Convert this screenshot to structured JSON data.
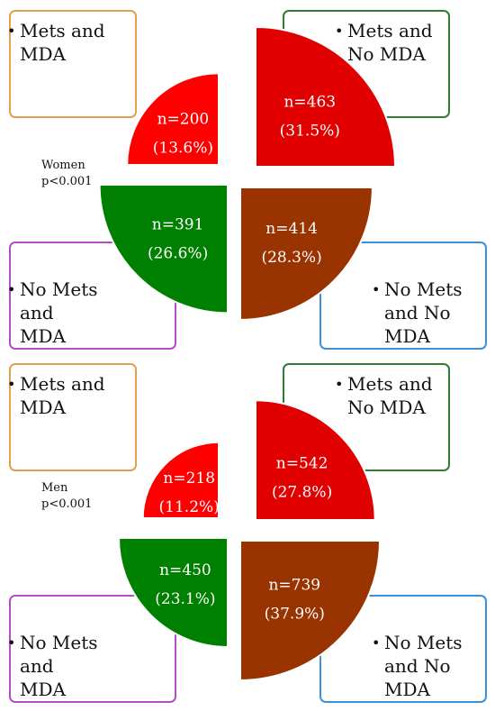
{
  "chart_data": [
    {
      "type": "pie",
      "note_lines": [
        "Women",
        "p<0.001"
      ],
      "categories": [
        "Mets and MDA",
        "Mets and No MDA",
        "No Mets and MDA",
        "No Mets and No MDA"
      ],
      "slices": [
        {
          "key": "mets_mda",
          "n_label": "n=200",
          "pct_label": "(13.6%)",
          "n": 200,
          "pct": 13.6,
          "color": "#ff0000"
        },
        {
          "key": "mets_nomda",
          "n_label": "n=463",
          "pct_label": "(31.5%)",
          "n": 463,
          "pct": 31.5,
          "color": "#e00000"
        },
        {
          "key": "nomets_mda",
          "n_label": "n=391",
          "pct_label": "(26.6%)",
          "n": 391,
          "pct": 26.6,
          "color": "#008000"
        },
        {
          "key": "nomets_nomda",
          "n_label": "n=414",
          "pct_label": "(28.3%)",
          "n": 414,
          "pct": 28.3,
          "color": "#993300"
        }
      ],
      "legend_boxes": [
        {
          "key": "mets_mda",
          "lines": [
            "Mets and",
            "MDA"
          ],
          "border": "#e0a050"
        },
        {
          "key": "mets_nomda",
          "lines": [
            "Mets and",
            "No MDA"
          ],
          "border": "#2e7d32"
        },
        {
          "key": "nomets_mda",
          "lines": [
            "No Mets",
            "and",
            "MDA"
          ],
          "border": "#b04fc0"
        },
        {
          "key": "nomets_nomda",
          "lines": [
            "No Mets",
            "and No",
            "MDA"
          ],
          "border": "#3d8fdc"
        }
      ]
    },
    {
      "type": "pie",
      "note_lines": [
        "Men",
        "p<0.001"
      ],
      "categories": [
        "Mets and MDA",
        "Mets and No MDA",
        "No Mets and MDA",
        "No Mets and No MDA"
      ],
      "slices": [
        {
          "key": "mets_mda",
          "n_label": "n=218",
          "pct_label": "(11.2%)",
          "n": 218,
          "pct": 11.2,
          "color": "#ff0000"
        },
        {
          "key": "mets_nomda",
          "n_label": "n=542",
          "pct_label": "(27.8%)",
          "n": 542,
          "pct": 27.8,
          "color": "#e00000"
        },
        {
          "key": "nomets_mda",
          "n_label": "n=450",
          "pct_label": "(23.1%)",
          "n": 450,
          "pct": 23.1,
          "color": "#008000"
        },
        {
          "key": "nomets_nomda",
          "n_label": "n=739",
          "pct_label": "(37.9%)",
          "n": 739,
          "pct": 37.9,
          "color": "#993300"
        }
      ],
      "legend_boxes": [
        {
          "key": "mets_mda",
          "lines": [
            "Mets and",
            "MDA"
          ],
          "border": "#e0a050"
        },
        {
          "key": "mets_nomda",
          "lines": [
            "Mets and",
            "No MDA"
          ],
          "border": "#2e7d32"
        },
        {
          "key": "nomets_mda",
          "lines": [
            "No Mets",
            "and",
            "MDA"
          ],
          "border": "#b04fc0"
        },
        {
          "key": "nomets_nomda",
          "lines": [
            "No Mets",
            "and No",
            "MDA"
          ],
          "border": "#3d8fdc"
        }
      ]
    }
  ]
}
